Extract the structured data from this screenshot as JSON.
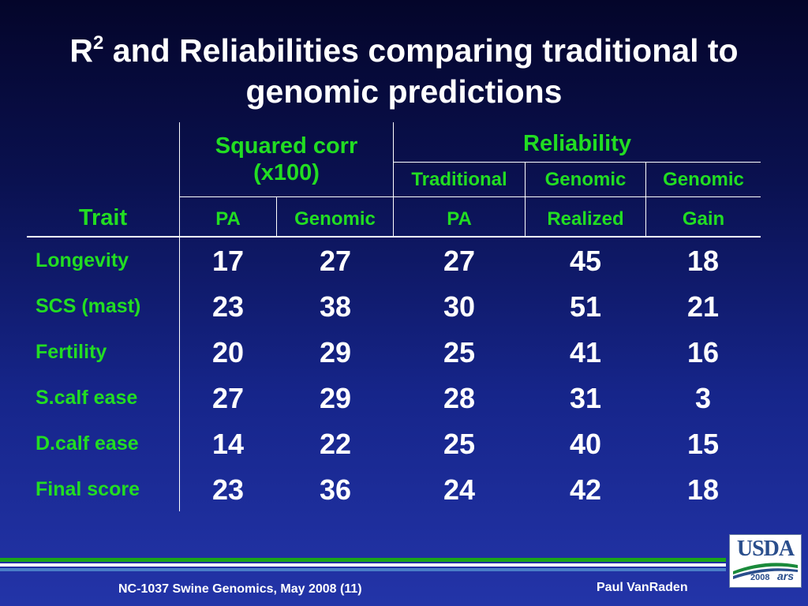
{
  "slide": {
    "title_prefix": "R",
    "title_sup": "2",
    "title_rest": " and Reliabilities comparing traditional to",
    "title_line2": "genomic predictions"
  },
  "table": {
    "trait_header": "Trait",
    "group_headers": {
      "squared_corr_line1": "Squared corr",
      "squared_corr_line2": "(x100)",
      "reliability": "Reliability"
    },
    "sub_headers_row1": [
      "Traditional",
      "Genomic",
      "Genomic"
    ],
    "sub_headers_row2": [
      "PA",
      "Genomic",
      "PA",
      "Realized",
      "Gain"
    ],
    "rows": [
      {
        "trait": "Longevity",
        "values": [
          "17",
          "27",
          "27",
          "45",
          "18"
        ]
      },
      {
        "trait": "SCS (mast)",
        "values": [
          "23",
          "38",
          "30",
          "51",
          "21"
        ]
      },
      {
        "trait": "Fertility",
        "values": [
          "20",
          "29",
          "25",
          "41",
          "16"
        ]
      },
      {
        "trait": "S.calf ease",
        "values": [
          "27",
          "29",
          "28",
          "31",
          "3"
        ]
      },
      {
        "trait": "D.calf ease",
        "values": [
          "14",
          "22",
          "25",
          "40",
          "15"
        ]
      },
      {
        "trait": "Final score",
        "values": [
          "23",
          "36",
          "24",
          "42",
          "18"
        ]
      }
    ]
  },
  "footer": {
    "left": "NC-1037 Swine Genomics, May 2008 (11)",
    "right": "Paul VanRaden"
  },
  "logo": {
    "name": "USDA",
    "year": "2008",
    "agency": "ars"
  },
  "colors": {
    "accent_green": "#22dd22",
    "footer_bar_green": "#1aa51a",
    "footer_bar_white": "#ffffff",
    "footer_bar_blue": "#4a7ec8"
  }
}
